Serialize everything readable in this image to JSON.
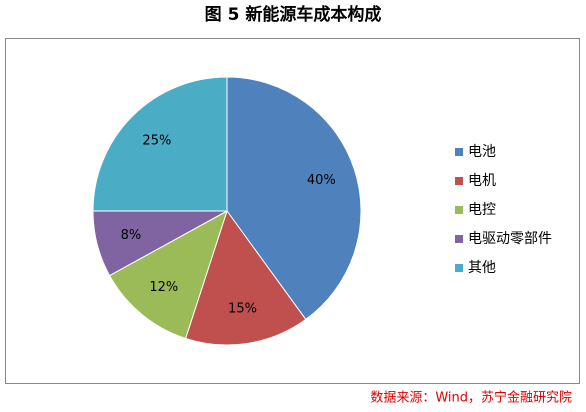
{
  "chart_data": {
    "type": "pie",
    "title": "图 5  新能源车成本构成",
    "categories": [
      "电池",
      "电机",
      "电控",
      "电驱动零部件",
      "其他"
    ],
    "values": [
      40,
      15,
      12,
      8,
      25
    ],
    "value_labels": [
      "40%",
      "15%",
      "12%",
      "8%",
      "25%"
    ],
    "colors": [
      "#4f81bd",
      "#c0504d",
      "#9bbb59",
      "#8064a2",
      "#4bacc6"
    ],
    "legend": "right",
    "source": "数据来源：Wind，苏宁金融研究院"
  }
}
